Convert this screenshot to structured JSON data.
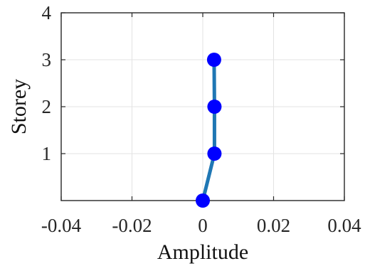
{
  "chart_data": {
    "type": "line",
    "xlabel": "Amplitude",
    "ylabel": "Storey",
    "xlim": [
      -0.04,
      0.04
    ],
    "ylim": [
      0,
      4
    ],
    "x_ticks": [
      -0.04,
      -0.02,
      0,
      0.02,
      0.04
    ],
    "x_tick_labels": [
      "-0.04",
      "-0.02",
      "0",
      "0.02",
      "0.04"
    ],
    "y_ticks": [
      1,
      2,
      3,
      4
    ],
    "y_tick_labels": [
      "1",
      "2",
      "3",
      "4"
    ],
    "grid": true,
    "series": [
      {
        "x": [
          0,
          0.0033,
          0.0033,
          0.0032
        ],
        "y": [
          0,
          1,
          2,
          3
        ],
        "line_color": "#1f77b4",
        "marker_color": "#0000ff"
      }
    ]
  }
}
